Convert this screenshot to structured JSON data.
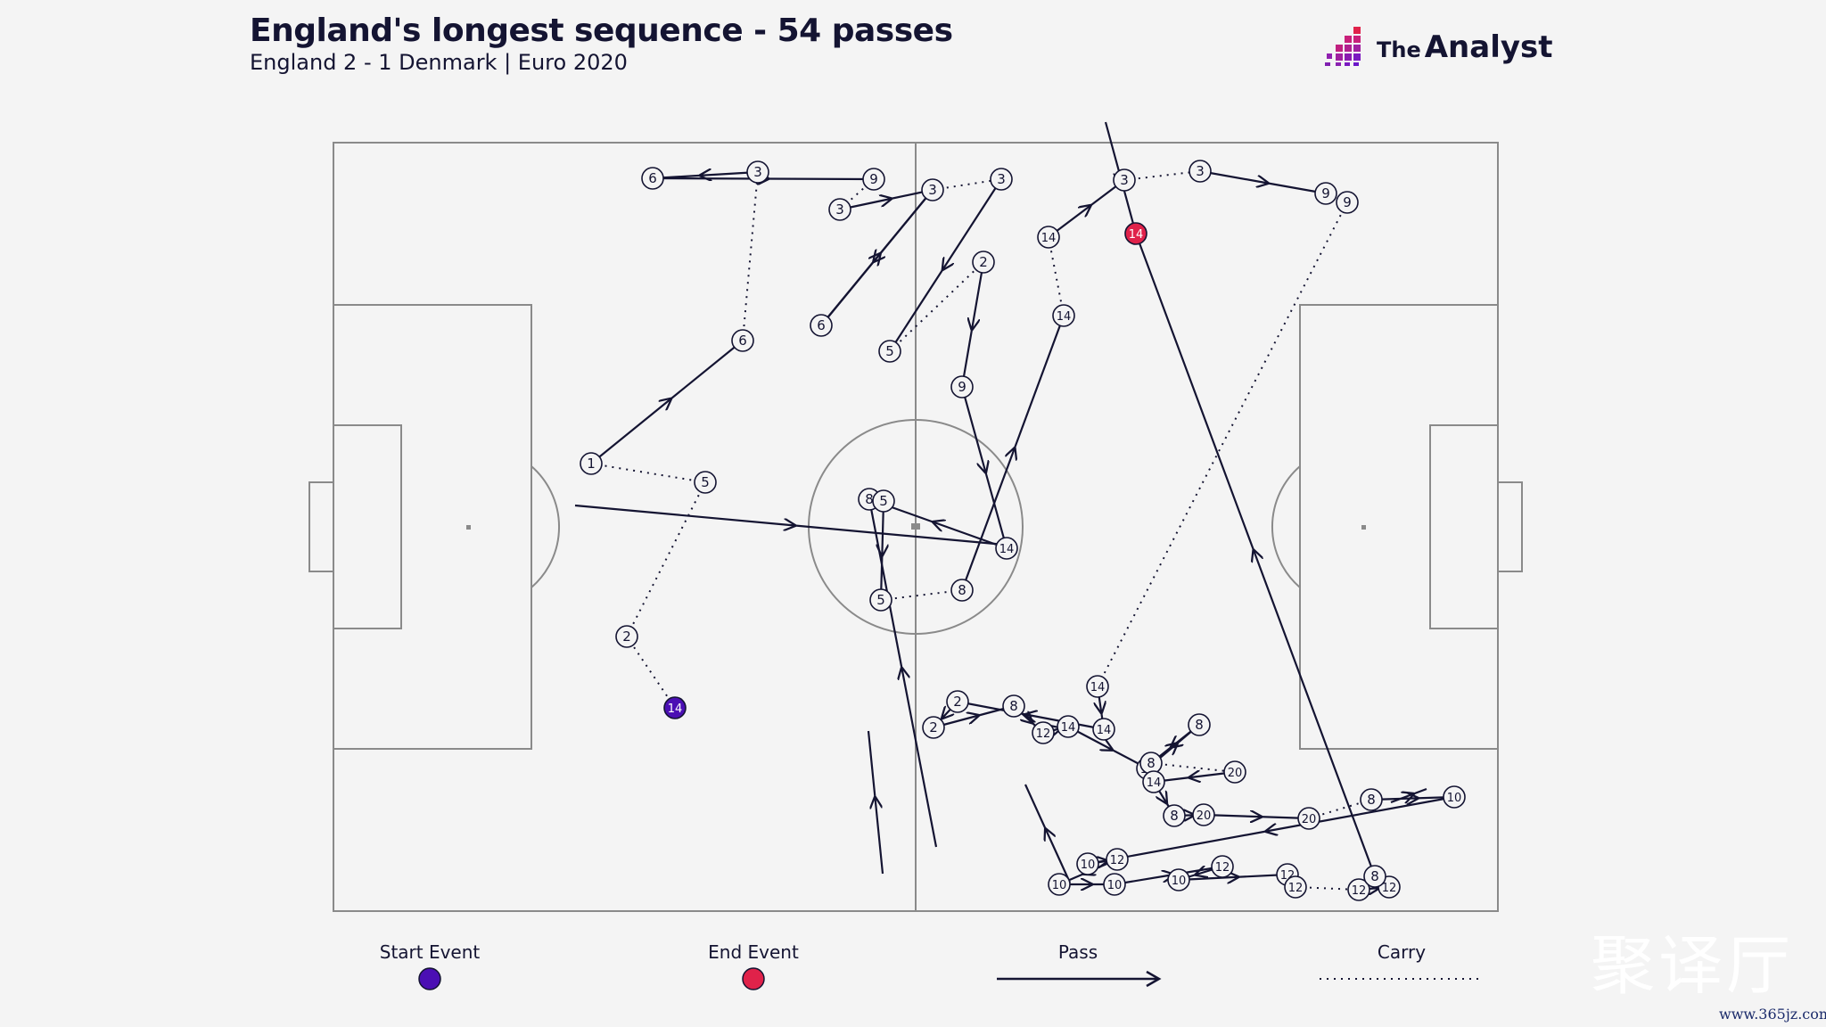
{
  "title": "England's longest sequence - 54 passes",
  "subtitle": "England 2 - 1 Denmark | Euro 2020",
  "brand": {
    "prefix": "The",
    "name": "Analyst",
    "logo_icon": "bar-grid-logo-icon"
  },
  "legend": {
    "start_label": "Start Event",
    "end_label": "End Event",
    "pass_label": "Pass",
    "carry_label": "Carry",
    "start_color": "#4b0fb4",
    "end_color": "#e0224a",
    "line_color": "#141432"
  },
  "colors": {
    "pitch_lines": "#8a8a8a",
    "background": "#f4f4f4",
    "pass": "#141432"
  },
  "nodes": [
    {
      "label": "14",
      "type": "start"
    },
    {
      "label": "2"
    },
    {
      "label": "5"
    },
    {
      "label": "1"
    },
    {
      "label": "6"
    },
    {
      "label": "3"
    },
    {
      "label": "6"
    },
    {
      "label": "9"
    },
    {
      "label": "3"
    },
    {
      "label": "6"
    },
    {
      "label": "3"
    },
    {
      "label": "3"
    },
    {
      "label": "5"
    },
    {
      "label": "2"
    },
    {
      "label": "9"
    },
    {
      "label": "14"
    },
    {
      "label": "8"
    },
    {
      "label": "5"
    },
    {
      "label": "5"
    },
    {
      "label": "8"
    },
    {
      "label": "14"
    },
    {
      "label": "14"
    },
    {
      "label": "3"
    },
    {
      "label": "3"
    },
    {
      "label": "9"
    },
    {
      "label": "9"
    },
    {
      "label": "14"
    },
    {
      "label": "14"
    },
    {
      "label": "2"
    },
    {
      "label": "2"
    },
    {
      "label": "8"
    },
    {
      "label": "12"
    },
    {
      "label": "14"
    },
    {
      "label": "14"
    },
    {
      "label": "8"
    },
    {
      "label": "8"
    },
    {
      "label": "20"
    },
    {
      "label": "14"
    },
    {
      "label": "8"
    },
    {
      "label": "20"
    },
    {
      "label": "20"
    },
    {
      "label": "8"
    },
    {
      "label": "10"
    },
    {
      "label": "10"
    },
    {
      "label": "12"
    },
    {
      "label": "10"
    },
    {
      "label": "10"
    },
    {
      "label": "12"
    },
    {
      "label": "10"
    },
    {
      "label": "12"
    },
    {
      "label": "12"
    },
    {
      "label": "12"
    },
    {
      "label": "12"
    },
    {
      "label": "8"
    },
    {
      "label": "14",
      "type": "end"
    }
  ],
  "watermark": {
    "cn": "聚译厅",
    "url": "www.365jz.com"
  }
}
